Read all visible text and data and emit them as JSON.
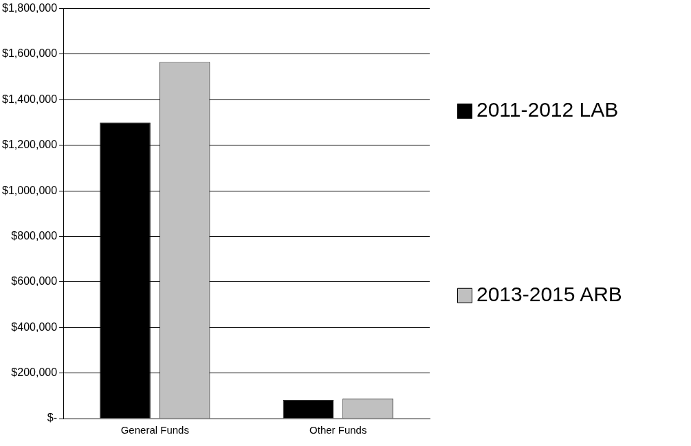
{
  "chart_data": {
    "type": "bar",
    "categories": [
      "General Funds",
      "Other Funds"
    ],
    "series": [
      {
        "name": "2011-2012 LAB",
        "color": "#000000",
        "values": [
          1300000,
          82000
        ]
      },
      {
        "name": "2013-2015 ARB",
        "color": "#c0c0c0",
        "values": [
          1565000,
          88000
        ]
      }
    ],
    "ylim": [
      0,
      1800000
    ],
    "yticks": [
      {
        "value": 0,
        "label": "$-"
      },
      {
        "value": 200000,
        "label": "$200,000"
      },
      {
        "value": 400000,
        "label": "$400,000"
      },
      {
        "value": 600000,
        "label": "$600,000"
      },
      {
        "value": 800000,
        "label": "$800,000"
      },
      {
        "value": 1000000,
        "label": "$1,000,000"
      },
      {
        "value": 1200000,
        "label": "$1,200,000"
      },
      {
        "value": 1400000,
        "label": "$1,400,000"
      },
      {
        "value": 1600000,
        "label": "$1,600,000"
      },
      {
        "value": 1800000,
        "label": "$1,800,000"
      }
    ],
    "grid": "y",
    "legend": "right"
  }
}
